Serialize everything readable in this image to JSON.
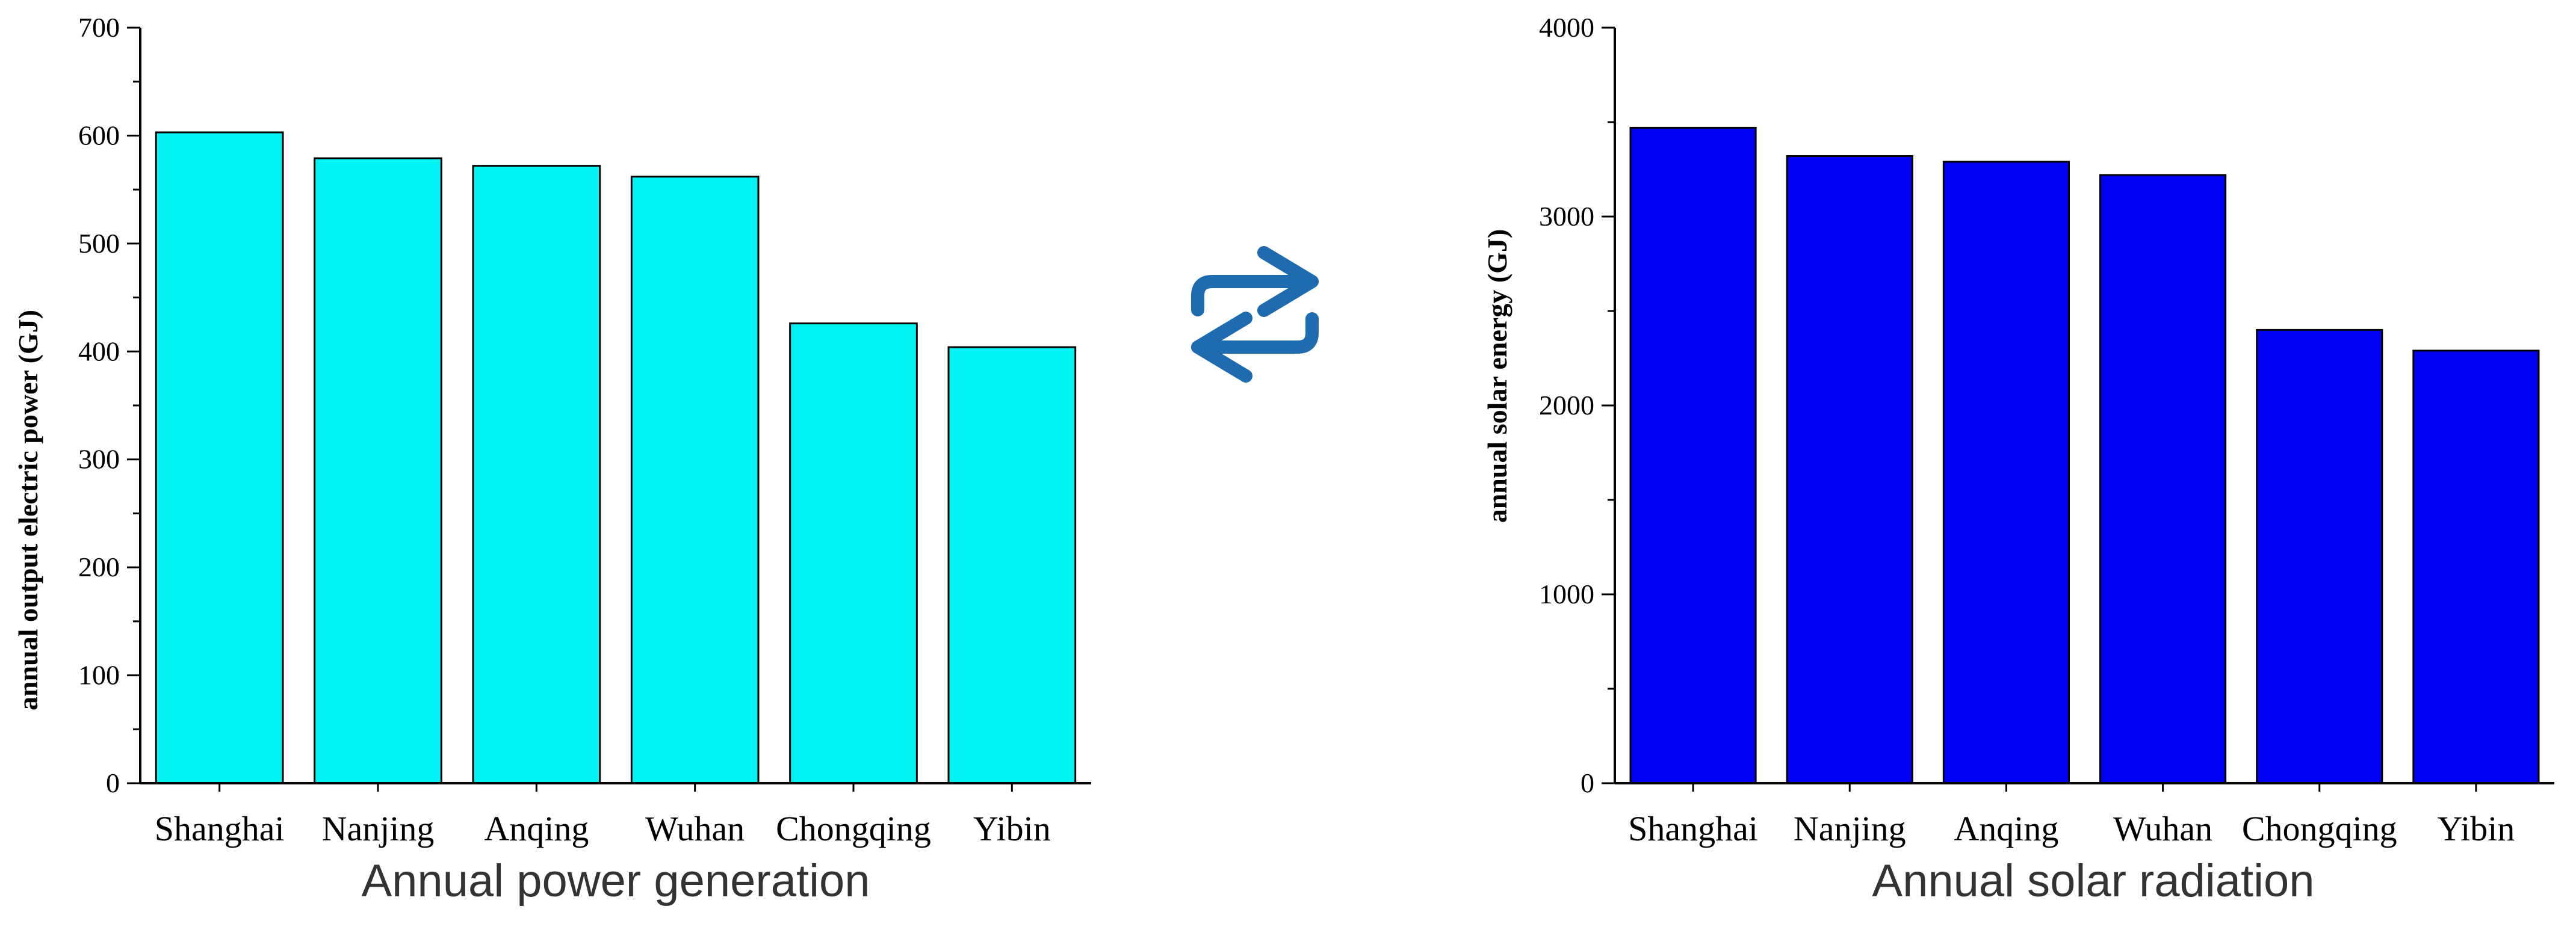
{
  "colors": {
    "left_bar": "#00F2F2",
    "right_bar": "#0000F2",
    "axis": "#000000",
    "arrow": "#1F6BB0",
    "caption": "#333333"
  },
  "arrow_icon": "swap-arrows-icon",
  "chart_data": [
    {
      "type": "bar",
      "title": "",
      "caption": "Annual power generation",
      "xlabel": "",
      "ylabel": "annual output electric power (GJ)",
      "ylim": [
        0,
        700
      ],
      "yticks": [
        0,
        100,
        200,
        300,
        400,
        500,
        600,
        700
      ],
      "grid": false,
      "legend": "none",
      "categories": [
        "Shanghai",
        "Nanjing",
        "Anqing",
        "Wuhan",
        "Chongqing",
        "Yibin"
      ],
      "values": [
        603,
        579,
        572,
        562,
        426,
        404
      ]
    },
    {
      "type": "bar",
      "title": "",
      "caption": "Annual solar radiation",
      "xlabel": "",
      "ylabel": "annual solar energy (GJ)",
      "ylim": [
        0,
        4000
      ],
      "yticks": [
        0,
        1000,
        2000,
        3000,
        4000
      ],
      "grid": false,
      "legend": "none",
      "categories": [
        "Shanghai",
        "Nanjing",
        "Anqing",
        "Wuhan",
        "Chongqing",
        "Yibin"
      ],
      "values": [
        3470,
        3320,
        3290,
        3220,
        2400,
        2290
      ]
    }
  ]
}
